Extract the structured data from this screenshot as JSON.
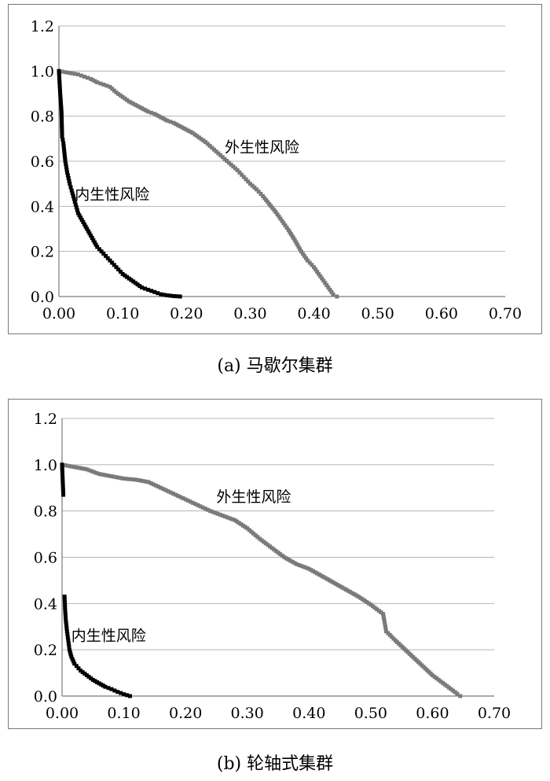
{
  "captions": {
    "a": "(a) 马歇尔集群",
    "b": "(b) 轮轴式集群"
  },
  "colors": {
    "endogenous": "#000000",
    "exogenous": "#7a7a7a",
    "grid": "#b5b5b5",
    "axis": "#7a7a7a"
  },
  "chart_data": [
    {
      "type": "scatter",
      "title": "",
      "xlabel": "",
      "ylabel": "",
      "xlim": [
        0,
        0.7
      ],
      "ylim": [
        0,
        1.2
      ],
      "x_ticks": [
        "0.00",
        "0.10",
        "0.20",
        "0.30",
        "0.40",
        "0.50",
        "0.60",
        "0.70"
      ],
      "y_ticks": [
        "0.0",
        "0.2",
        "0.4",
        "0.6",
        "0.8",
        "1.0",
        "1.2"
      ],
      "grid": true,
      "series": [
        {
          "name": "外生性风险",
          "color_key": "exogenous",
          "points": [
            [
              0.0,
              1.0
            ],
            [
              0.01,
              0.995
            ],
            [
              0.02,
              0.99
            ],
            [
              0.03,
              0.985
            ],
            [
              0.04,
              0.975
            ],
            [
              0.05,
              0.965
            ],
            [
              0.06,
              0.95
            ],
            [
              0.07,
              0.94
            ],
            [
              0.08,
              0.93
            ],
            [
              0.09,
              0.905
            ],
            [
              0.1,
              0.885
            ],
            [
              0.11,
              0.865
            ],
            [
              0.12,
              0.85
            ],
            [
              0.13,
              0.835
            ],
            [
              0.14,
              0.82
            ],
            [
              0.15,
              0.81
            ],
            [
              0.16,
              0.795
            ],
            [
              0.17,
              0.78
            ],
            [
              0.18,
              0.77
            ],
            [
              0.19,
              0.755
            ],
            [
              0.2,
              0.74
            ],
            [
              0.21,
              0.725
            ],
            [
              0.22,
              0.705
            ],
            [
              0.23,
              0.685
            ],
            [
              0.24,
              0.66
            ],
            [
              0.25,
              0.635
            ],
            [
              0.26,
              0.61
            ],
            [
              0.27,
              0.585
            ],
            [
              0.28,
              0.56
            ],
            [
              0.29,
              0.53
            ],
            [
              0.3,
              0.5
            ],
            [
              0.31,
              0.475
            ],
            [
              0.32,
              0.445
            ],
            [
              0.33,
              0.41
            ],
            [
              0.34,
              0.375
            ],
            [
              0.35,
              0.335
            ],
            [
              0.36,
              0.295
            ],
            [
              0.37,
              0.25
            ],
            [
              0.38,
              0.2
            ],
            [
              0.39,
              0.16
            ],
            [
              0.4,
              0.13
            ],
            [
              0.41,
              0.09
            ],
            [
              0.42,
              0.05
            ],
            [
              0.43,
              0.01
            ],
            [
              0.436,
              0.0
            ]
          ]
        },
        {
          "name": "内生性风险",
          "color_key": "endogenous",
          "points": [
            [
              0.0,
              1.0
            ],
            [
              0.002,
              0.9
            ],
            [
              0.004,
              0.82
            ],
            [
              0.005,
              0.71
            ],
            [
              0.007,
              0.68
            ],
            [
              0.01,
              0.6
            ],
            [
              0.013,
              0.55
            ],
            [
              0.017,
              0.5
            ],
            [
              0.02,
              0.47
            ],
            [
              0.025,
              0.42
            ],
            [
              0.03,
              0.37
            ],
            [
              0.04,
              0.32
            ],
            [
              0.05,
              0.27
            ],
            [
              0.06,
              0.22
            ],
            [
              0.07,
              0.19
            ],
            [
              0.08,
              0.16
            ],
            [
              0.09,
              0.13
            ],
            [
              0.1,
              0.1
            ],
            [
              0.11,
              0.08
            ],
            [
              0.12,
              0.06
            ],
            [
              0.13,
              0.04
            ],
            [
              0.14,
              0.03
            ],
            [
              0.15,
              0.02
            ],
            [
              0.16,
              0.01
            ],
            [
              0.17,
              0.005
            ],
            [
              0.18,
              0.002
            ],
            [
              0.19,
              0.0
            ]
          ]
        }
      ],
      "annotations": [
        {
          "text": "外生性风险",
          "x": 0.26,
          "y": 0.64
        },
        {
          "text": "内生性风险",
          "x": 0.025,
          "y": 0.43
        }
      ]
    },
    {
      "type": "scatter",
      "title": "",
      "xlabel": "",
      "ylabel": "",
      "xlim": [
        0,
        0.7
      ],
      "ylim": [
        0,
        1.2
      ],
      "x_ticks": [
        "0.00",
        "0.10",
        "0.20",
        "0.30",
        "0.40",
        "0.50",
        "0.60",
        "0.70"
      ],
      "y_ticks": [
        "0.0",
        "0.2",
        "0.4",
        "0.6",
        "0.8",
        "1.0",
        "1.2"
      ],
      "grid": true,
      "series": [
        {
          "name": "外生性风险",
          "color_key": "exogenous",
          "points": [
            [
              0.0,
              1.0
            ],
            [
              0.02,
              0.99
            ],
            [
              0.04,
              0.98
            ],
            [
              0.06,
              0.96
            ],
            [
              0.08,
              0.95
            ],
            [
              0.1,
              0.94
            ],
            [
              0.12,
              0.935
            ],
            [
              0.14,
              0.925
            ],
            [
              0.16,
              0.9
            ],
            [
              0.18,
              0.875
            ],
            [
              0.2,
              0.85
            ],
            [
              0.22,
              0.825
            ],
            [
              0.24,
              0.8
            ],
            [
              0.26,
              0.78
            ],
            [
              0.28,
              0.76
            ],
            [
              0.3,
              0.725
            ],
            [
              0.32,
              0.68
            ],
            [
              0.34,
              0.64
            ],
            [
              0.36,
              0.6
            ],
            [
              0.38,
              0.57
            ],
            [
              0.4,
              0.55
            ],
            [
              0.42,
              0.52
            ],
            [
              0.44,
              0.49
            ],
            [
              0.46,
              0.46
            ],
            [
              0.48,
              0.43
            ],
            [
              0.5,
              0.395
            ],
            [
              0.51,
              0.375
            ],
            [
              0.52,
              0.355
            ],
            [
              0.525,
              0.28
            ],
            [
              0.54,
              0.24
            ],
            [
              0.56,
              0.19
            ],
            [
              0.58,
              0.14
            ],
            [
              0.6,
              0.09
            ],
            [
              0.62,
              0.05
            ],
            [
              0.64,
              0.01
            ],
            [
              0.645,
              0.0
            ]
          ]
        },
        {
          "name": "内生性风险",
          "color_key": "endogenous",
          "points": [
            [
              0.0,
              1.0
            ],
            [
              0.002,
              0.87
            ],
            [
              0.004,
              0.43
            ],
            [
              0.005,
              0.37
            ],
            [
              0.006,
              0.33
            ],
            [
              0.008,
              0.28
            ],
            [
              0.01,
              0.24
            ],
            [
              0.012,
              0.2
            ],
            [
              0.015,
              0.17
            ],
            [
              0.02,
              0.14
            ],
            [
              0.03,
              0.11
            ],
            [
              0.04,
              0.09
            ],
            [
              0.05,
              0.07
            ],
            [
              0.06,
              0.055
            ],
            [
              0.07,
              0.04
            ],
            [
              0.08,
              0.03
            ],
            [
              0.09,
              0.018
            ],
            [
              0.1,
              0.008
            ],
            [
              0.11,
              0.0
            ]
          ]
        }
      ],
      "annotations": [
        {
          "text": "外生性风险",
          "x": 0.25,
          "y": 0.84
        },
        {
          "text": "内生性风险",
          "x": 0.015,
          "y": 0.24
        }
      ]
    }
  ]
}
